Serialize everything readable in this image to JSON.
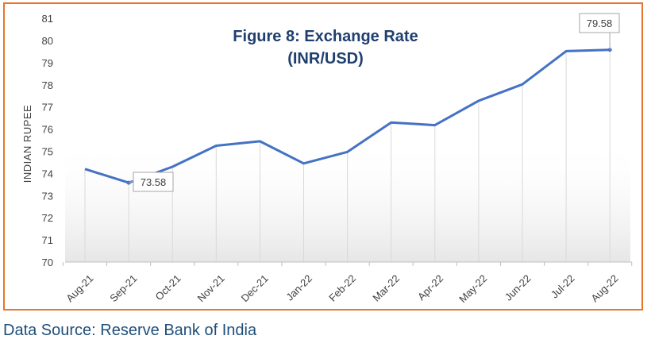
{
  "source_note": "Data Source: Reserve Bank of India",
  "chart_data": {
    "type": "line",
    "title_line1": "Figure 8: Exchange Rate",
    "title_line2": "(INR/USD)",
    "ylabel": "INDIAN RUPEE",
    "xlabel": "",
    "ylim": [
      70,
      81
    ],
    "yticks": [
      70,
      71,
      72,
      73,
      74,
      75,
      76,
      77,
      78,
      79,
      80,
      81
    ],
    "categories": [
      "Aug-21",
      "Sep-21",
      "Oct-21",
      "Nov-21",
      "Dec-21",
      "Jan-22",
      "Feb-22",
      "Mar-22",
      "Apr-22",
      "May-22",
      "Jun-22",
      "Jul-22",
      "Aug-22"
    ],
    "values": [
      74.2,
      73.58,
      74.3,
      75.25,
      75.45,
      74.45,
      74.97,
      76.3,
      76.18,
      77.28,
      78.02,
      79.52,
      79.58
    ],
    "annotations": [
      {
        "category": "Sep-21",
        "label": "73.58"
      },
      {
        "category": "Aug-22",
        "label": "79.58"
      }
    ],
    "line_color": "#4472c4",
    "frame_color": "#e8752d",
    "title_color": "#1f3f6e",
    "grid": false,
    "drop_lines": true
  }
}
